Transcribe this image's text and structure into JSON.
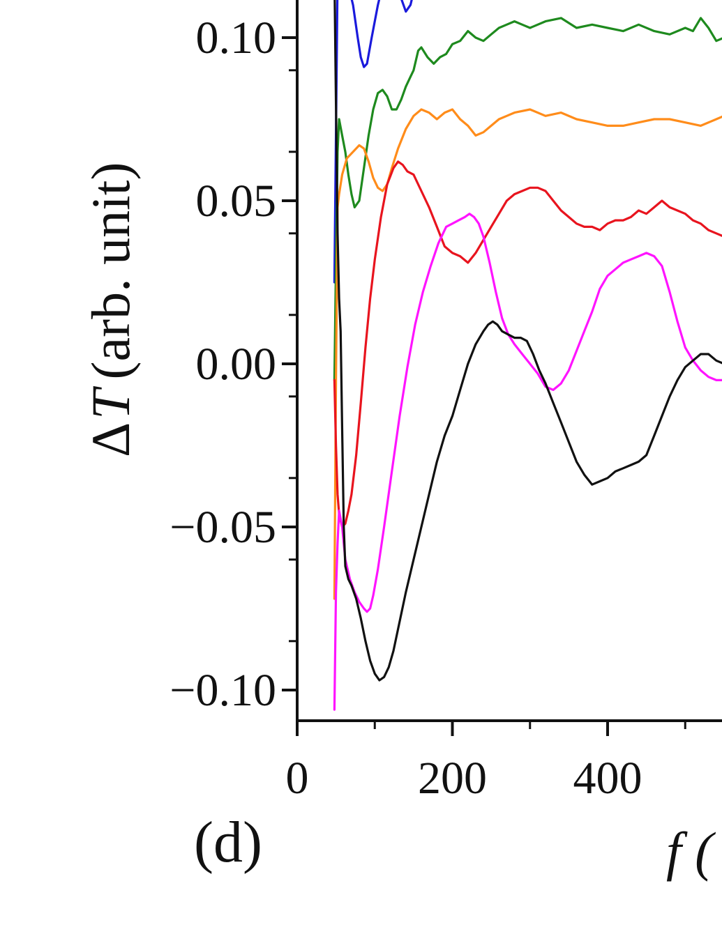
{
  "panel_label": "(d)",
  "chart_data": {
    "type": "line",
    "title": "",
    "ylabel_prefix": "Δ",
    "ylabel_symbol": "T",
    "ylabel_unit": "(arb. unit)",
    "xlabel_visible": "f (",
    "xlim": [
      0,
      550
    ],
    "ylim": [
      -0.11,
      0.115
    ],
    "x_ticks": [
      0,
      200,
      400
    ],
    "x_tick_labels": [
      "0",
      "200",
      "400"
    ],
    "y_ticks": [
      -0.1,
      -0.05,
      0.0,
      0.05,
      0.1
    ],
    "y_tick_labels": [
      "−0.10",
      "−0.05",
      "0.00",
      "0.05",
      "0.10"
    ],
    "grid": false,
    "legend": "none",
    "series": [
      {
        "color": "#1a1adc",
        "x": [
          48,
          50,
          52,
          54,
          56,
          60,
          66,
          72,
          78,
          82,
          86,
          90,
          96,
          104,
          112,
          120,
          128,
          134,
          140,
          146,
          150
        ],
        "y": [
          0.025,
          0.07,
          0.118,
          0.118,
          0.113,
          0.114,
          0.116,
          0.11,
          0.1,
          0.094,
          0.091,
          0.092,
          0.1,
          0.11,
          0.118,
          0.118,
          0.116,
          0.112,
          0.108,
          0.11,
          0.114
        ]
      },
      {
        "color": "#1e8a1e",
        "x": [
          48,
          50,
          52,
          54,
          58,
          62,
          66,
          70,
          74,
          80,
          86,
          92,
          98,
          104,
          110,
          116,
          122,
          128,
          134,
          140,
          146,
          150,
          156,
          160,
          168,
          176,
          184,
          192,
          200,
          210,
          220,
          230,
          240,
          250,
          260,
          270,
          280,
          290,
          300,
          320,
          340,
          360,
          380,
          400,
          420,
          440,
          460,
          480,
          500,
          510,
          520,
          530,
          540,
          550
        ],
        "y": [
          -0.005,
          0.03,
          0.065,
          0.075,
          0.07,
          0.065,
          0.058,
          0.052,
          0.048,
          0.05,
          0.06,
          0.07,
          0.078,
          0.083,
          0.084,
          0.082,
          0.078,
          0.078,
          0.081,
          0.085,
          0.088,
          0.09,
          0.096,
          0.097,
          0.094,
          0.092,
          0.094,
          0.095,
          0.098,
          0.099,
          0.102,
          0.1,
          0.099,
          0.101,
          0.103,
          0.104,
          0.105,
          0.104,
          0.103,
          0.105,
          0.106,
          0.103,
          0.104,
          0.103,
          0.102,
          0.104,
          0.102,
          0.101,
          0.103,
          0.102,
          0.106,
          0.103,
          0.099,
          0.1
        ]
      },
      {
        "color": "#ff8c1a",
        "x": [
          48,
          50,
          52,
          54,
          58,
          64,
          72,
          80,
          86,
          92,
          98,
          104,
          110,
          116,
          122,
          130,
          140,
          150,
          160,
          170,
          180,
          190,
          200,
          210,
          220,
          230,
          240,
          250,
          260,
          270,
          280,
          300,
          320,
          340,
          360,
          380,
          400,
          420,
          440,
          460,
          480,
          500,
          520,
          540,
          550
        ],
        "y": [
          -0.072,
          -0.005,
          0.048,
          0.052,
          0.058,
          0.063,
          0.065,
          0.067,
          0.066,
          0.062,
          0.057,
          0.054,
          0.053,
          0.055,
          0.06,
          0.066,
          0.072,
          0.076,
          0.078,
          0.077,
          0.075,
          0.077,
          0.078,
          0.075,
          0.073,
          0.07,
          0.071,
          0.073,
          0.075,
          0.076,
          0.077,
          0.078,
          0.076,
          0.077,
          0.075,
          0.074,
          0.073,
          0.073,
          0.074,
          0.075,
          0.075,
          0.074,
          0.073,
          0.075,
          0.076
        ]
      },
      {
        "color": "#e8141e",
        "x": [
          48,
          50,
          52,
          54,
          56,
          58,
          62,
          66,
          70,
          76,
          82,
          88,
          94,
          100,
          108,
          116,
          124,
          130,
          136,
          142,
          150,
          160,
          170,
          180,
          190,
          200,
          210,
          220,
          230,
          240,
          250,
          260,
          270,
          280,
          290,
          300,
          310,
          320,
          330,
          340,
          350,
          360,
          370,
          380,
          390,
          400,
          410,
          420,
          430,
          440,
          450,
          460,
          470,
          480,
          490,
          500,
          510,
          520,
          530,
          540,
          550
        ],
        "y": [
          -0.005,
          -0.025,
          -0.04,
          -0.046,
          -0.048,
          -0.05,
          -0.049,
          -0.045,
          -0.04,
          -0.028,
          -0.012,
          0.005,
          0.02,
          0.032,
          0.045,
          0.055,
          0.06,
          0.062,
          0.061,
          0.059,
          0.058,
          0.053,
          0.048,
          0.042,
          0.036,
          0.034,
          0.033,
          0.031,
          0.034,
          0.038,
          0.042,
          0.046,
          0.05,
          0.052,
          0.053,
          0.054,
          0.054,
          0.053,
          0.05,
          0.047,
          0.045,
          0.043,
          0.042,
          0.042,
          0.041,
          0.043,
          0.044,
          0.044,
          0.045,
          0.047,
          0.046,
          0.048,
          0.05,
          0.048,
          0.047,
          0.046,
          0.044,
          0.043,
          0.041,
          0.04,
          0.039
        ]
      },
      {
        "color": "#ff14ff",
        "x": [
          48,
          50,
          52,
          54,
          58,
          62,
          68,
          74,
          80,
          86,
          90,
          94,
          98,
          104,
          112,
          122,
          132,
          142,
          152,
          162,
          172,
          182,
          192,
          200,
          208,
          216,
          222,
          228,
          234,
          240,
          248,
          256,
          264,
          272,
          280,
          290,
          300,
          310,
          320,
          330,
          340,
          350,
          360,
          370,
          380,
          390,
          400,
          410,
          420,
          430,
          440,
          450,
          460,
          470,
          480,
          490,
          500,
          510,
          520,
          530,
          540,
          550
        ],
        "y": [
          -0.106,
          -0.07,
          -0.055,
          -0.045,
          -0.05,
          -0.06,
          -0.066,
          -0.07,
          -0.073,
          -0.075,
          -0.076,
          -0.075,
          -0.071,
          -0.063,
          -0.05,
          -0.033,
          -0.016,
          -0.001,
          0.012,
          0.022,
          0.03,
          0.037,
          0.042,
          0.043,
          0.044,
          0.045,
          0.046,
          0.045,
          0.043,
          0.039,
          0.031,
          0.022,
          0.014,
          0.009,
          0.006,
          0.003,
          0.0,
          -0.003,
          -0.007,
          -0.008,
          -0.006,
          -0.002,
          0.004,
          0.01,
          0.016,
          0.023,
          0.027,
          0.029,
          0.031,
          0.032,
          0.033,
          0.034,
          0.033,
          0.03,
          0.022,
          0.013,
          0.005,
          0.001,
          -0.002,
          -0.004,
          -0.005,
          -0.005
        ]
      },
      {
        "color": "#111111",
        "x": [
          48,
          50,
          52,
          54,
          56,
          58,
          60,
          62,
          66,
          70,
          76,
          82,
          88,
          94,
          100,
          106,
          112,
          118,
          124,
          132,
          140,
          150,
          160,
          170,
          180,
          190,
          200,
          210,
          220,
          230,
          240,
          246,
          252,
          258,
          264,
          272,
          280,
          288,
          296,
          304,
          312,
          320,
          330,
          340,
          350,
          360,
          370,
          380,
          390,
          400,
          410,
          420,
          430,
          440,
          450,
          460,
          470,
          480,
          490,
          500,
          510,
          520,
          530,
          540,
          550
        ],
        "y": [
          0.12,
          0.08,
          0.04,
          0.02,
          0.01,
          -0.02,
          -0.05,
          -0.062,
          -0.066,
          -0.068,
          -0.072,
          -0.078,
          -0.085,
          -0.091,
          -0.095,
          -0.097,
          -0.096,
          -0.093,
          -0.088,
          -0.079,
          -0.07,
          -0.06,
          -0.05,
          -0.04,
          -0.03,
          -0.022,
          -0.016,
          -0.008,
          0.0,
          0.006,
          0.01,
          0.012,
          0.013,
          0.012,
          0.01,
          0.009,
          0.008,
          0.008,
          0.007,
          0.003,
          -0.002,
          -0.006,
          -0.012,
          -0.018,
          -0.024,
          -0.03,
          -0.034,
          -0.037,
          -0.036,
          -0.035,
          -0.033,
          -0.032,
          -0.031,
          -0.03,
          -0.028,
          -0.022,
          -0.016,
          -0.01,
          -0.005,
          -0.001,
          0.001,
          0.003,
          0.003,
          0.001,
          0.0
        ]
      }
    ]
  }
}
